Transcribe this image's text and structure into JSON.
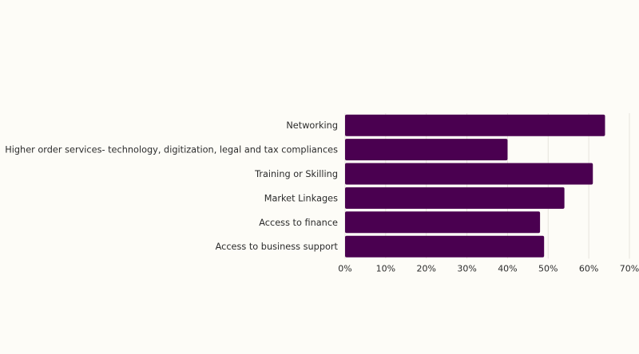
{
  "chart_data": {
    "type": "bar",
    "orientation": "horizontal",
    "title": "",
    "xlabel": "",
    "ylabel": "",
    "categories": [
      "Networking",
      "Higher order services- technology, digitization, legal and tax compliances",
      "Training or Skilling",
      "Market Linkages",
      "Access to finance",
      "Access to business support"
    ],
    "values": [
      64,
      40,
      61,
      54,
      48,
      49
    ],
    "value_unit": "%",
    "xlim": [
      0,
      70
    ],
    "x_ticks": [
      0,
      10,
      20,
      30,
      40,
      50,
      60,
      70
    ],
    "x_tick_labels": [
      "0%",
      "10%",
      "20%",
      "30%",
      "40%",
      "50%",
      "60%",
      "70%"
    ],
    "grid": "vertical",
    "legend": "none",
    "bar_color": "#4a0050",
    "grid_color": "#e6e4dc",
    "background_color": "#fdfcf7"
  }
}
